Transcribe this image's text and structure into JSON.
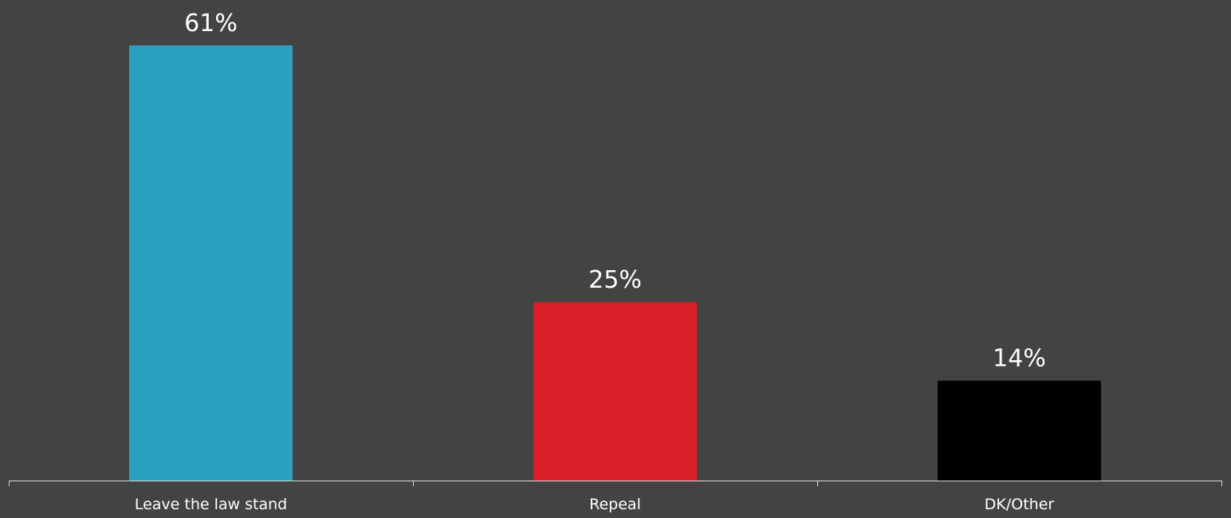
{
  "chart_data": {
    "type": "bar",
    "categories": [
      "Leave the law stand",
      "Repeal",
      "DK/Other"
    ],
    "values": [
      61,
      25,
      14
    ],
    "value_labels": [
      "61%",
      "25%",
      "14%"
    ],
    "colors": [
      "#2aa1bf",
      "#da1f28",
      "#000000"
    ],
    "ylim": [
      0,
      61
    ],
    "grid": false,
    "legend": "none",
    "title": "",
    "xlabel": "",
    "ylabel": ""
  },
  "colors": {
    "background": "#434343",
    "axis": "#d9d9d9",
    "text": "#ffffff"
  }
}
